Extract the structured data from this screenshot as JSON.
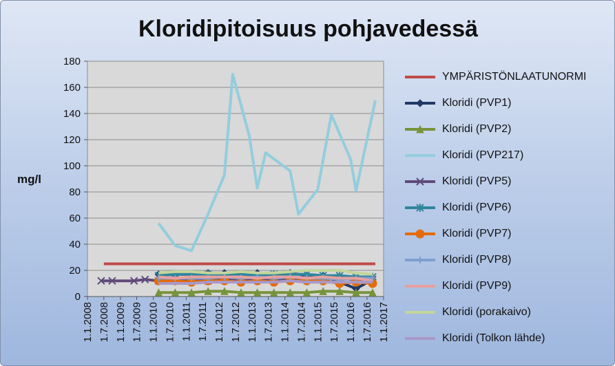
{
  "chart_data": {
    "type": "line",
    "title": "Kloridipitoisuus pohjavedessä",
    "ylabel": "mg/l",
    "ylim": [
      0,
      180
    ],
    "yticks": [
      0,
      20,
      40,
      60,
      80,
      100,
      120,
      140,
      160,
      180
    ],
    "xlim": [
      "2008-01-01",
      "2017-01-01"
    ],
    "xticks": [
      "1.1.2008",
      "1.7.2008",
      "1.1.2009",
      "1.7.2009",
      "1.1.2010",
      "1.7.2010",
      "1.1.2011",
      "1.7.2011",
      "1.1.2012",
      "1.7.2012",
      "1.1.2013",
      "1.7.2013",
      "1.1.2014",
      "1.7.2014",
      "1.1.2015",
      "1.7.2015",
      "1.1.2016",
      "1.7.2016",
      "1.1.2017"
    ],
    "legend_position": "right",
    "grid": true,
    "series": [
      {
        "name": "YMPÄRISTÖNLAATUNORMI",
        "color": "#be4b48",
        "marker": "none",
        "width": 4,
        "points": [
          [
            "2008-07-01",
            25
          ],
          [
            "2016-10-01",
            25
          ]
        ]
      },
      {
        "name": "Kloridi (PVP1)",
        "color": "#1f3864",
        "marker": "diamond",
        "width": 4,
        "points": [
          [
            "2010-03-01",
            17
          ],
          [
            "2010-09-01",
            17
          ],
          [
            "2011-03-01",
            17
          ],
          [
            "2011-09-01",
            18
          ],
          [
            "2012-03-01",
            18
          ],
          [
            "2012-09-01",
            17
          ],
          [
            "2013-03-01",
            18
          ],
          [
            "2013-09-01",
            17
          ],
          [
            "2014-03-01",
            18
          ],
          [
            "2014-09-01",
            16
          ],
          [
            "2015-03-01",
            16
          ],
          [
            "2015-09-01",
            11
          ],
          [
            "2016-03-01",
            6
          ],
          [
            "2016-09-01",
            13
          ]
        ]
      },
      {
        "name": "Kloridi (PVP2)",
        "color": "#77933c",
        "marker": "triangle",
        "width": 4,
        "points": [
          [
            "2010-03-01",
            3
          ],
          [
            "2010-09-01",
            3
          ],
          [
            "2011-03-01",
            3
          ],
          [
            "2011-09-01",
            4
          ],
          [
            "2012-03-01",
            4
          ],
          [
            "2012-09-01",
            3
          ],
          [
            "2013-03-01",
            3
          ],
          [
            "2013-09-01",
            3
          ],
          [
            "2014-03-01",
            3
          ],
          [
            "2014-09-01",
            3
          ],
          [
            "2015-03-01",
            4
          ],
          [
            "2015-09-01",
            4
          ],
          [
            "2016-03-01",
            3
          ],
          [
            "2016-09-01",
            3
          ]
        ]
      },
      {
        "name": "Kloridi (PVP217)",
        "color": "#93cddd",
        "marker": "none",
        "width": 4,
        "points": [
          [
            "2010-03-01",
            56
          ],
          [
            "2010-09-01",
            39
          ],
          [
            "2011-03-01",
            35
          ],
          [
            "2011-09-01",
            63
          ],
          [
            "2012-03-01",
            93
          ],
          [
            "2012-06-01",
            170
          ],
          [
            "2012-12-01",
            123
          ],
          [
            "2013-03-01",
            83
          ],
          [
            "2013-06-01",
            110
          ],
          [
            "2014-03-01",
            96
          ],
          [
            "2014-06-01",
            63
          ],
          [
            "2015-01-01",
            82
          ],
          [
            "2015-06-01",
            139
          ],
          [
            "2016-01-01",
            105
          ],
          [
            "2016-03-01",
            81
          ],
          [
            "2016-10-01",
            150
          ]
        ]
      },
      {
        "name": "Kloridi (PVP5)",
        "color": "#604a7b",
        "marker": "x",
        "width": 4,
        "points": [
          [
            "2008-06-01",
            12
          ],
          [
            "2008-10-01",
            12
          ],
          [
            "2009-06-01",
            12
          ],
          [
            "2009-10-01",
            13
          ],
          [
            "2010-03-01",
            12
          ],
          [
            "2010-09-01",
            13
          ],
          [
            "2011-03-01",
            13
          ],
          [
            "2011-09-01",
            12
          ],
          [
            "2012-03-01",
            13
          ],
          [
            "2012-09-01",
            13
          ],
          [
            "2013-03-01",
            13
          ],
          [
            "2013-09-01",
            13
          ],
          [
            "2014-03-01",
            14
          ],
          [
            "2014-09-01",
            13
          ],
          [
            "2015-03-01",
            13
          ],
          [
            "2015-09-01",
            14
          ],
          [
            "2016-03-01",
            13
          ],
          [
            "2016-09-01",
            13
          ]
        ]
      },
      {
        "name": "Kloridi (PVP6)",
        "color": "#31859c",
        "marker": "star",
        "width": 4,
        "points": [
          [
            "2010-03-01",
            16
          ],
          [
            "2010-09-01",
            17
          ],
          [
            "2011-03-01",
            17
          ],
          [
            "2011-09-01",
            17
          ],
          [
            "2012-03-01",
            16
          ],
          [
            "2012-09-01",
            17
          ],
          [
            "2013-03-01",
            16
          ],
          [
            "2013-09-01",
            17
          ],
          [
            "2014-03-01",
            17
          ],
          [
            "2014-09-01",
            17
          ],
          [
            "2015-03-01",
            16
          ],
          [
            "2015-09-01",
            16
          ],
          [
            "2016-03-01",
            15
          ],
          [
            "2016-09-01",
            15
          ]
        ]
      },
      {
        "name": "Kloridi (PVP7)",
        "color": "#e46c0a",
        "marker": "circle",
        "width": 4,
        "points": [
          [
            "2010-03-01",
            12
          ],
          [
            "2010-09-01",
            12
          ],
          [
            "2011-03-01",
            11
          ],
          [
            "2011-09-01",
            12
          ],
          [
            "2012-03-01",
            12
          ],
          [
            "2012-09-01",
            11
          ],
          [
            "2013-03-01",
            12
          ],
          [
            "2013-09-01",
            11
          ],
          [
            "2014-03-01",
            12
          ],
          [
            "2014-09-01",
            12
          ],
          [
            "2015-03-01",
            12
          ],
          [
            "2015-09-01",
            10
          ],
          [
            "2016-03-01",
            11
          ],
          [
            "2016-09-01",
            10
          ]
        ]
      },
      {
        "name": "Kloridi (PVP8)",
        "color": "#7f9fcf",
        "marker": "plus",
        "width": 4,
        "points": [
          [
            "2010-03-01",
            14
          ],
          [
            "2010-09-01",
            14
          ],
          [
            "2011-03-01",
            14
          ],
          [
            "2011-09-01",
            14
          ],
          [
            "2012-03-01",
            15
          ],
          [
            "2012-09-01",
            14
          ],
          [
            "2013-03-01",
            15
          ],
          [
            "2013-09-01",
            14
          ],
          [
            "2014-03-01",
            15
          ],
          [
            "2014-09-01",
            14
          ],
          [
            "2015-03-01",
            14
          ],
          [
            "2015-09-01",
            13
          ],
          [
            "2016-03-01",
            14
          ],
          [
            "2016-09-01",
            14
          ]
        ]
      },
      {
        "name": "Kloridi (PVP9)",
        "color": "#e6a09e",
        "marker": "none",
        "width": 4,
        "points": [
          [
            "2010-03-01",
            15
          ],
          [
            "2010-09-01",
            14
          ],
          [
            "2011-03-01",
            15
          ],
          [
            "2011-09-01",
            15
          ],
          [
            "2012-03-01",
            15
          ],
          [
            "2012-09-01",
            15
          ],
          [
            "2013-03-01",
            14
          ],
          [
            "2013-09-01",
            15
          ],
          [
            "2014-03-01",
            15
          ],
          [
            "2014-09-01",
            14
          ],
          [
            "2015-03-01",
            15
          ],
          [
            "2015-09-01",
            14
          ],
          [
            "2016-03-01",
            14
          ],
          [
            "2016-09-01",
            12
          ]
        ]
      },
      {
        "name": "Kloridi (porakaivo)",
        "color": "#c3d69b",
        "marker": "none",
        "width": 4,
        "points": [
          [
            "2010-03-01",
            18
          ],
          [
            "2010-09-01",
            19
          ],
          [
            "2011-03-01",
            19
          ],
          [
            "2011-09-01",
            18
          ],
          [
            "2012-03-01",
            18
          ],
          [
            "2012-09-01",
            19
          ],
          [
            "2013-03-01",
            18
          ],
          [
            "2013-09-01",
            18
          ],
          [
            "2014-03-01",
            19
          ],
          [
            "2014-09-01",
            20
          ],
          [
            "2015-03-01",
            20
          ],
          [
            "2015-09-01",
            20
          ],
          [
            "2016-03-01",
            18
          ],
          [
            "2016-09-01",
            17
          ]
        ]
      },
      {
        "name": "Kloridi (Tolkon lähde)",
        "color": "#a999c8",
        "marker": "none",
        "width": 4,
        "points": [
          [
            "2010-03-01",
            10
          ],
          [
            "2010-09-01",
            10
          ],
          [
            "2011-03-01",
            10
          ],
          [
            "2011-09-01",
            11
          ],
          [
            "2012-03-01",
            11
          ],
          [
            "2012-09-01",
            11
          ],
          [
            "2013-03-01",
            11
          ],
          [
            "2013-09-01",
            11
          ],
          [
            "2014-03-01",
            12
          ],
          [
            "2014-09-01",
            11
          ],
          [
            "2015-03-01",
            11
          ],
          [
            "2015-09-01",
            11
          ],
          [
            "2016-03-01",
            11
          ],
          [
            "2016-09-01",
            11
          ]
        ]
      }
    ]
  }
}
